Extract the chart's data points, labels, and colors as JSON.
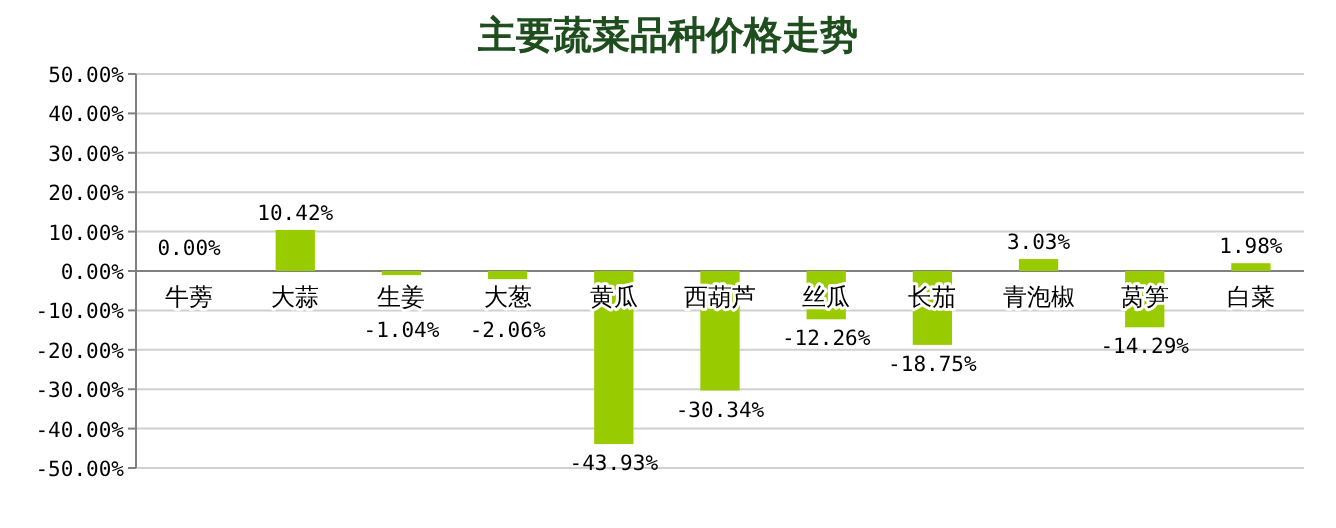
{
  "chart_data": {
    "type": "bar",
    "title": "主要蔬菜品种价格走势",
    "categories": [
      "牛蒡",
      "大蒜",
      "生姜",
      "大葱",
      "黄瓜",
      "西葫芦",
      "丝瓜",
      "长茄",
      "青泡椒",
      "莴笋",
      "白菜"
    ],
    "values": [
      0.0,
      10.42,
      -1.04,
      -2.06,
      -43.93,
      -30.34,
      -12.26,
      -18.75,
      3.03,
      -14.29,
      1.98
    ],
    "value_labels": [
      "0.00%",
      "10.42%",
      "-1.04%",
      "-2.06%",
      "-43.93%",
      "-30.34%",
      "-12.26%",
      "-18.75%",
      "3.03%",
      "-14.29%",
      "1.98%"
    ],
    "color": "#99cc00",
    "ylim": [
      -50,
      50
    ],
    "yticks": [
      {
        "value": -50,
        "label": "-50.00%"
      },
      {
        "value": -40,
        "label": "-40.00%"
      },
      {
        "value": -30,
        "label": "-30.00%"
      },
      {
        "value": -20,
        "label": "-20.00%"
      },
      {
        "value": -10,
        "label": "-10.00%"
      },
      {
        "value": 0,
        "label": "0.00%"
      },
      {
        "value": 10,
        "label": "10.00%"
      },
      {
        "value": 20,
        "label": "20.00%"
      },
      {
        "value": 30,
        "label": "30.00%"
      },
      {
        "value": 40,
        "label": "40.00%"
      },
      {
        "value": 50,
        "label": "50.00%"
      }
    ],
    "grid": "y"
  }
}
